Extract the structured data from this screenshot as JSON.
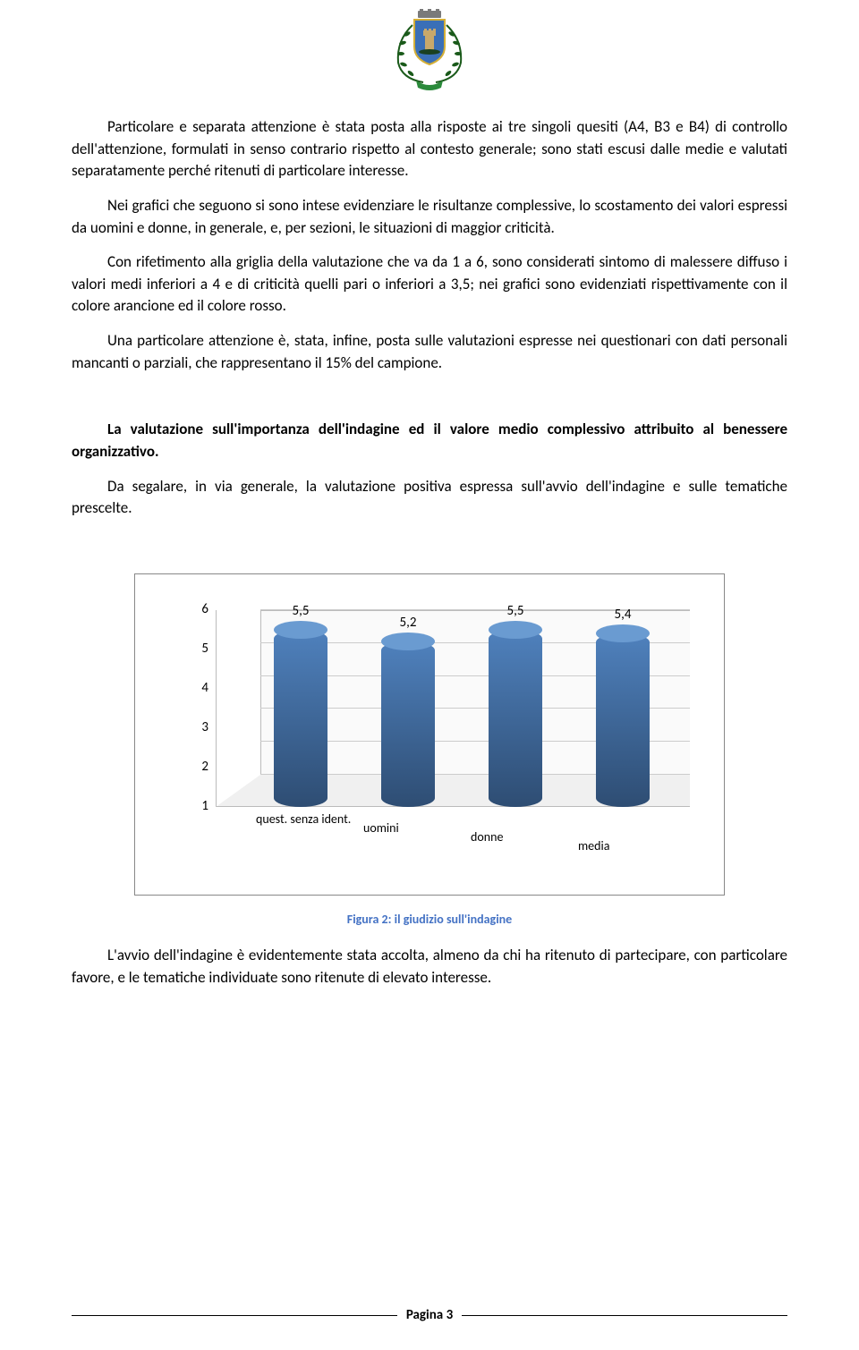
{
  "paragraphs": {
    "p1": "Particolare e separata attenzione è stata posta alla risposte ai tre singoli quesiti (A4, B3 e B4) di controllo dell'attenzione, formulati in senso contrario rispetto al contesto generale; sono stati escusi dalle medie e valutati separatamente perché ritenuti di particolare interesse.",
    "p2": "Nei grafici che seguono si sono intese evidenziare le risultanze complessive, lo scostamento dei valori espressi da uomini e donne, in generale, e, per sezioni, le situazioni di maggior criticità.",
    "p3": "Con rifetimento alla griglia della valutazione che va da 1 a 6, sono considerati sintomo di malessere diffuso i valori medi inferiori a 4 e di criticità quelli pari o inferiori a 3,5; nei grafici sono evidenziati rispettivamente con il colore arancione ed il colore rosso.",
    "p4": "Una particolare attenzione è, stata, infine, posta sulle valutazioni espresse nei questionari con dati personali mancanti o parziali, che rappresentano il 15% del campione.",
    "heading": "La valutazione sull'importanza dell'indagine ed il valore medio complessivo attribuito al benessere organizzativo.",
    "p5": "Da segalare, in via generale, la valutazione positiva espressa sull'avvio dell'indagine e sulle tematiche prescelte.",
    "p6": "L'avvio dell'indagine è evidentemente  stata accolta, almeno da chi ha ritenuto di partecipare, con particolare favore, e le tematiche individuate sono ritenute di elevato interesse."
  },
  "chart": {
    "type": "bar3d-cylinder",
    "categories": [
      "quest. senza ident.",
      "uomini",
      "donne",
      "media"
    ],
    "values": [
      5.5,
      5.2,
      5.5,
      5.4
    ],
    "value_labels": [
      "5,5",
      "5,2",
      "5,5",
      "5,4"
    ],
    "ymin": 1,
    "ymax": 6,
    "ytick_step": 1,
    "yticks": [
      "1",
      "2",
      "3",
      "4",
      "5",
      "6"
    ],
    "bar_color_front_top": "#4f81bd",
    "bar_color_front_bottom": "#2e4d73",
    "bar_color_top": "#6a9bd1",
    "background_color": "#ffffff",
    "grid_color": "#cccccc",
    "floor_color": "#f0f0f0",
    "label_fontsize": 15,
    "caption": "Figura 2: il giudizio sull'indagine",
    "caption_color": "#4472c4"
  },
  "footer": {
    "page_label": "Pagina 3"
  }
}
